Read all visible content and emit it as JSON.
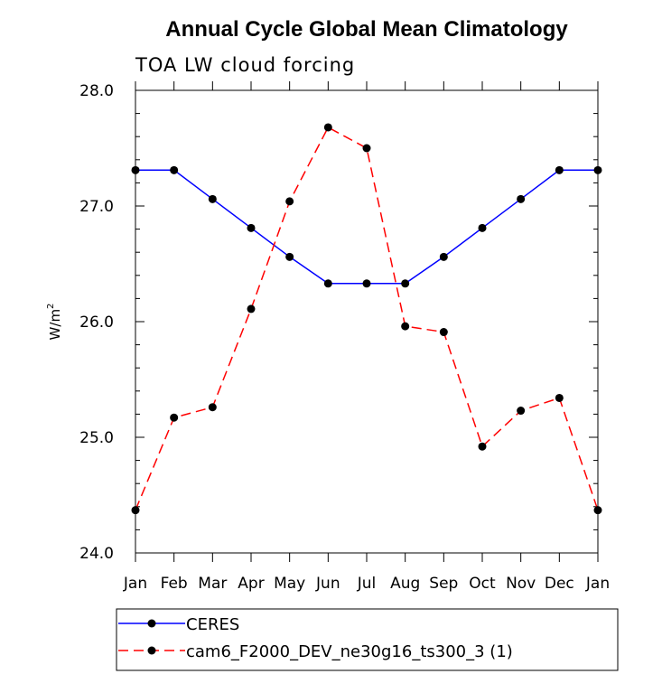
{
  "chart_data": {
    "type": "line",
    "title": "Annual Cycle Global Mean Climatology",
    "subtitle": "TOA LW cloud forcing",
    "ylabel": "W/m",
    "ylabel_superscript": "2",
    "xlabel": "",
    "ylim": [
      24.0,
      28.0
    ],
    "yticks": [
      "24.0",
      "25.0",
      "26.0",
      "27.0",
      "28.0"
    ],
    "categories": [
      "Jan",
      "Feb",
      "Mar",
      "Apr",
      "May",
      "Jun",
      "Jul",
      "Aug",
      "Sep",
      "Oct",
      "Nov",
      "Dec",
      "Jan"
    ],
    "series": [
      {
        "name": "CERES",
        "color": "#0000ff",
        "dash": "solid",
        "values": [
          27.31,
          27.31,
          27.06,
          26.81,
          26.56,
          26.33,
          26.33,
          26.33,
          26.56,
          26.81,
          27.06,
          27.31,
          27.31
        ]
      },
      {
        "name": "cam6_F2000_DEV_ne30g16_ts300_3 (1)",
        "color": "#ff0000",
        "dash": "dashed",
        "values": [
          24.37,
          25.17,
          25.26,
          26.11,
          27.04,
          27.68,
          27.5,
          25.96,
          25.91,
          24.92,
          25.23,
          25.34,
          24.37
        ]
      }
    ],
    "legend_position": "bottom-left",
    "grid": false
  }
}
